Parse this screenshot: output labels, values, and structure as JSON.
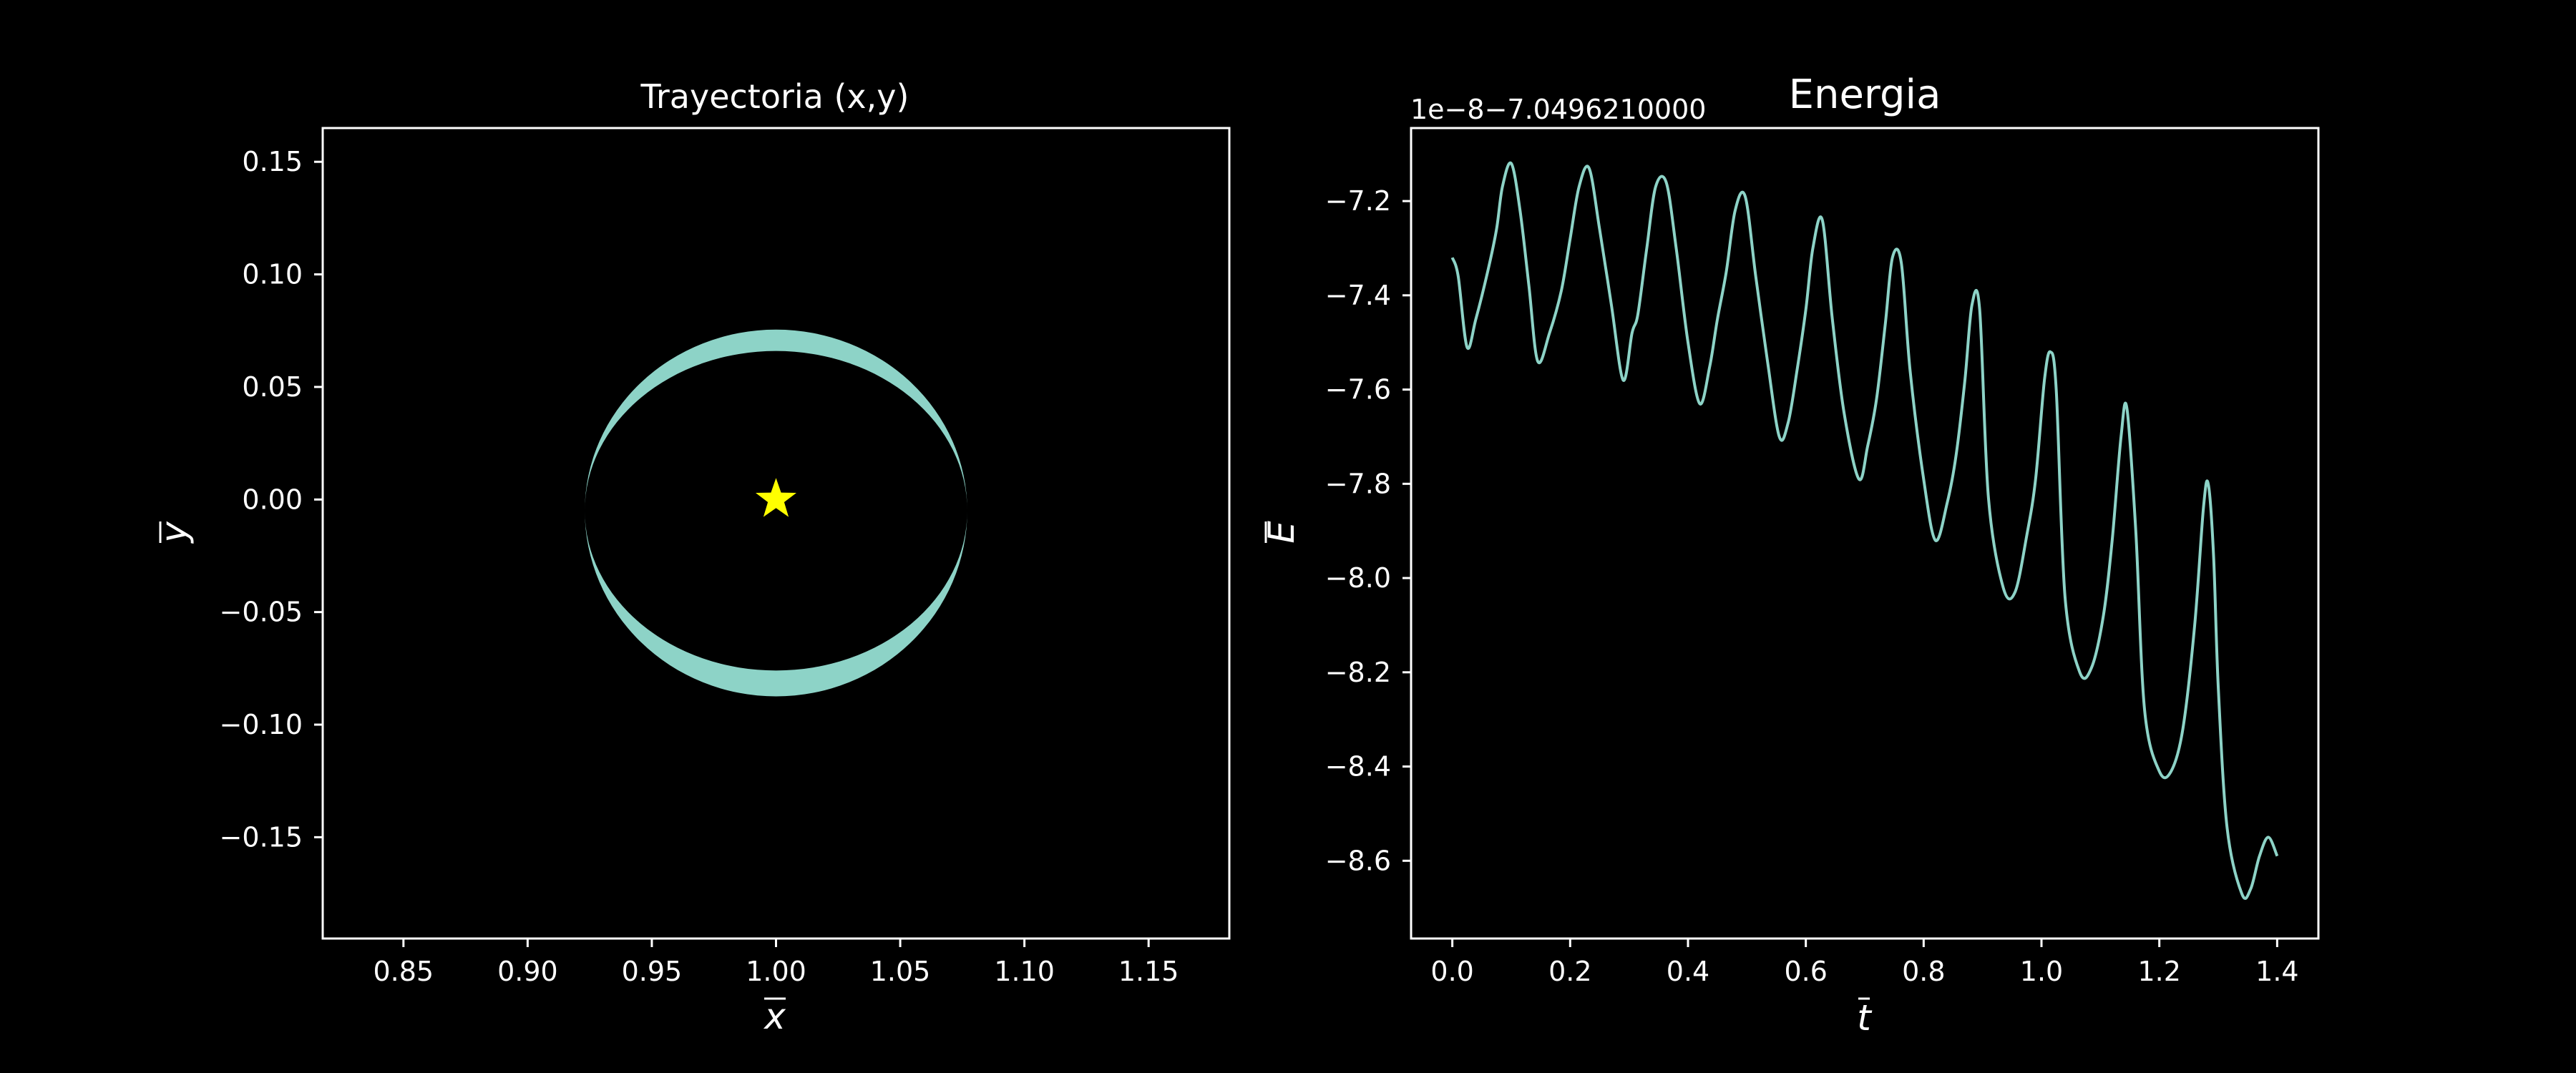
{
  "colors": {
    "background": "#000000",
    "foreground": "#ffffff",
    "series": "#8dd3c7",
    "marker": "#ffff00"
  },
  "chart_data": [
    {
      "type": "line",
      "title": "Trayectoria (x,y)",
      "xlabel": "x",
      "ylabel": "y",
      "xlim": [
        0.8175,
        1.1825
      ],
      "ylim": [
        -0.195,
        0.165
      ],
      "xticks": [
        0.85,
        0.9,
        0.95,
        1.0,
        1.05,
        1.1,
        1.15
      ],
      "xtick_labels": [
        "0.85",
        "0.90",
        "0.95",
        "1.00",
        "1.05",
        "1.10",
        "1.15"
      ],
      "yticks": [
        0.15,
        0.1,
        0.05,
        0.0,
        -0.05,
        -0.1,
        -0.15
      ],
      "ytick_labels": [
        "0.15",
        "0.10",
        "0.05",
        "0.00",
        "−0.05",
        "−0.10",
        "−0.15"
      ],
      "series": [
        {
          "orbit_band": {
            "center": [
              1.0,
              -0.005
            ],
            "semi_axis_x": 0.077,
            "outer_top": 0.0755,
            "inner_top": 0.066,
            "inner_bottom": -0.076,
            "outer_bottom": -0.0875
          }
        }
      ],
      "marker": {
        "shape": "star",
        "x": 1.0,
        "y": 0.0
      }
    },
    {
      "type": "line",
      "title": "Energia",
      "offset_text": "1e−8−7.0496210000",
      "xlabel": "t",
      "ylabel": "E",
      "xlim": [
        -0.07,
        1.47
      ],
      "ylim": [
        -8.765,
        -7.045
      ],
      "xticks": [
        0.0,
        0.2,
        0.4,
        0.6,
        0.8,
        1.0,
        1.2,
        1.4
      ],
      "xtick_labels": [
        "0.0",
        "0.2",
        "0.4",
        "0.6",
        "0.8",
        "1.0",
        "1.2",
        "1.4"
      ],
      "yticks": [
        -7.2,
        -7.4,
        -7.6,
        -7.8,
        -8.0,
        -8.2,
        -8.4,
        -8.6
      ],
      "ytick_labels": [
        "−7.2",
        "−7.4",
        "−7.6",
        "−7.8",
        "−8.0",
        "−8.2",
        "−8.4",
        "−8.6"
      ],
      "series": [
        {
          "x": [
            0.0,
            0.01,
            0.025,
            0.04,
            0.06,
            0.075,
            0.085,
            0.1,
            0.115,
            0.13,
            0.145,
            0.165,
            0.185,
            0.2,
            0.215,
            0.232,
            0.25,
            0.27,
            0.29,
            0.305,
            0.315,
            0.33,
            0.345,
            0.363,
            0.38,
            0.4,
            0.42,
            0.437,
            0.45,
            0.465,
            0.48,
            0.497,
            0.515,
            0.535,
            0.555,
            0.57,
            0.585,
            0.6,
            0.612,
            0.628,
            0.645,
            0.665,
            0.69,
            0.705,
            0.72,
            0.735,
            0.747,
            0.762,
            0.777,
            0.8,
            0.82,
            0.84,
            0.855,
            0.87,
            0.882,
            0.895,
            0.91,
            0.935,
            0.955,
            0.975,
            0.99,
            1.005,
            1.015,
            1.025,
            1.04,
            1.065,
            1.085,
            1.105,
            1.12,
            1.135,
            1.145,
            1.16,
            1.175,
            1.2,
            1.22,
            1.24,
            1.26,
            1.275,
            1.283,
            1.292,
            1.3,
            1.315,
            1.34,
            1.355,
            1.37,
            1.385,
            1.4
          ],
          "y": [
            -7.32,
            -7.36,
            -7.51,
            -7.45,
            -7.35,
            -7.26,
            -7.17,
            -7.12,
            -7.22,
            -7.38,
            -7.54,
            -7.48,
            -7.39,
            -7.28,
            -7.17,
            -7.13,
            -7.26,
            -7.42,
            -7.58,
            -7.48,
            -7.44,
            -7.3,
            -7.17,
            -7.16,
            -7.3,
            -7.5,
            -7.63,
            -7.55,
            -7.45,
            -7.35,
            -7.22,
            -7.19,
            -7.36,
            -7.54,
            -7.7,
            -7.67,
            -7.56,
            -7.43,
            -7.3,
            -7.24,
            -7.45,
            -7.65,
            -7.79,
            -7.72,
            -7.62,
            -7.46,
            -7.32,
            -7.33,
            -7.56,
            -7.79,
            -7.92,
            -7.84,
            -7.74,
            -7.58,
            -7.42,
            -7.43,
            -7.83,
            -8.02,
            -8.03,
            -7.91,
            -7.79,
            -7.58,
            -7.52,
            -7.6,
            -8.04,
            -8.2,
            -8.19,
            -8.08,
            -7.92,
            -7.7,
            -7.64,
            -7.9,
            -8.28,
            -8.41,
            -8.41,
            -8.32,
            -8.1,
            -7.85,
            -7.8,
            -7.95,
            -8.23,
            -8.53,
            -8.67,
            -8.66,
            -8.59,
            -8.55,
            -8.59
          ]
        }
      ]
    }
  ]
}
